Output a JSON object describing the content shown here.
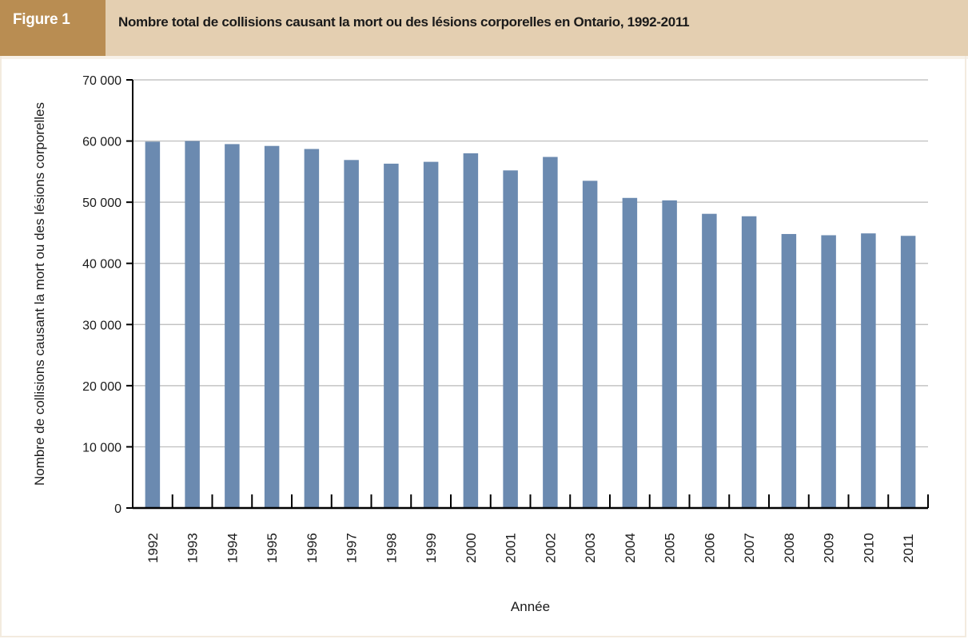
{
  "figure": {
    "label": "Figure 1",
    "title": "Nombre total de collisions causant la mort ou des lésions corporelles en Ontario, 1992-2011"
  },
  "colors": {
    "header_background": "#e4cfb1",
    "tab_background": "#b98d52",
    "bar": "#6b8ab0",
    "grid": "#b9b9b9",
    "axis": "#000000"
  },
  "chart_data": {
    "type": "bar",
    "categories": [
      "1992",
      "1993",
      "1994",
      "1995",
      "1996",
      "1997",
      "1998",
      "1999",
      "2000",
      "2001",
      "2002",
      "2003",
      "2004",
      "2005",
      "2006",
      "2007",
      "2008",
      "2009",
      "2010",
      "2011"
    ],
    "series": [
      {
        "values": [
          59900,
          60000,
          59500,
          59200,
          58700,
          56900,
          56300,
          56600,
          58000,
          55200,
          57400,
          53500,
          50700,
          50300,
          48100,
          47700,
          44800,
          44600,
          44900,
          44500
        ]
      }
    ],
    "xlabel": "Année",
    "ylabel": "Nombre de collisions causant la mort ou des lésions corporelles",
    "ylim": [
      0,
      70000
    ],
    "yticks": [
      0,
      10000,
      20000,
      30000,
      40000,
      50000,
      60000,
      70000
    ],
    "ytick_labels": [
      "0",
      "10 000",
      "20 000",
      "30 000",
      "40 000",
      "50 000",
      "60 000",
      "70 000"
    ],
    "grid": true,
    "legend": "none"
  }
}
